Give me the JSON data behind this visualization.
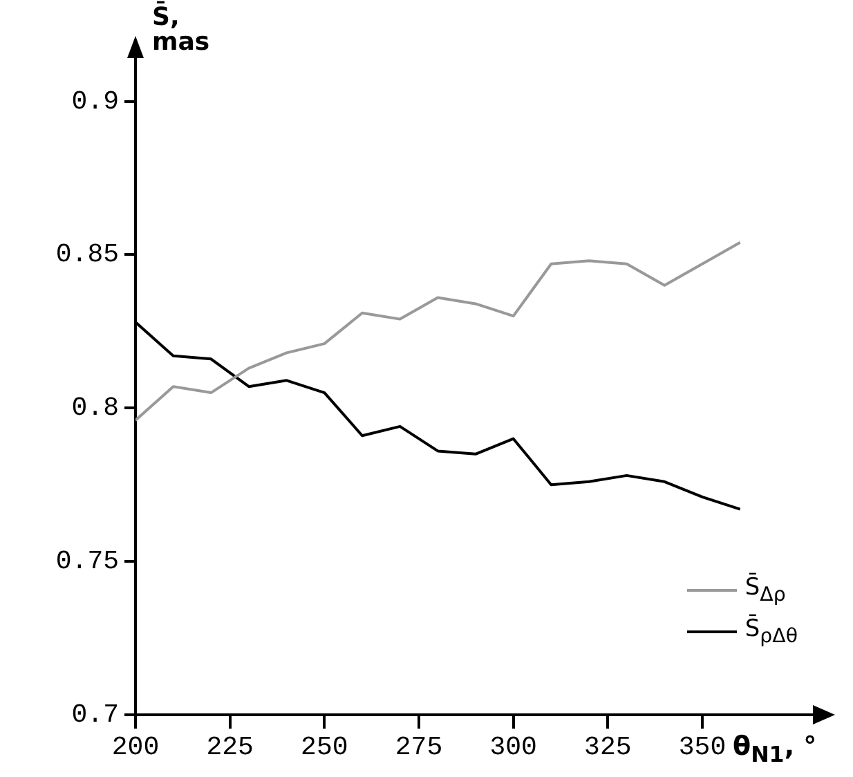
{
  "chart_data": {
    "type": "line",
    "xlabel": "θ$_{N1}$, °",
    "ylabel": "S̄, mas",
    "x": [
      200,
      210,
      220,
      230,
      240,
      250,
      260,
      270,
      280,
      290,
      300,
      310,
      320,
      330,
      340,
      350,
      360
    ],
    "series": [
      {
        "name": "S̄$_{Δρ}$",
        "color": "#999999",
        "values": [
          0.796,
          0.807,
          0.805,
          0.813,
          0.818,
          0.821,
          0.831,
          0.829,
          0.836,
          0.834,
          0.83,
          0.847,
          0.848,
          0.847,
          0.84,
          0.847,
          0.854
        ]
      },
      {
        "name": "S̄$_{ρΔθ}$",
        "color": "#000000",
        "values": [
          0.828,
          0.817,
          0.816,
          0.807,
          0.809,
          0.805,
          0.791,
          0.794,
          0.786,
          0.785,
          0.79,
          0.775,
          0.776,
          0.778,
          0.776,
          0.771,
          0.767
        ]
      }
    ],
    "xlim": [
      200,
      380
    ],
    "xticks": [
      200,
      225,
      250,
      275,
      300,
      325,
      350
    ],
    "ylim": [
      0.7,
      0.915
    ],
    "yticks": [
      0.7,
      0.75,
      0.8,
      0.85,
      0.9
    ],
    "grid": false,
    "legend": "bottom right",
    "marker": "none",
    "line_style": "solid"
  }
}
